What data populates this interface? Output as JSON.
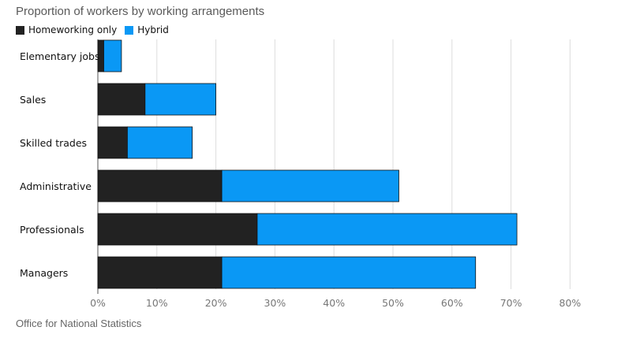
{
  "title": "Proportion of workers by working arrangements",
  "source": "Office for National Statistics",
  "colors": {
    "homeworking": "#222222",
    "hybrid": "#0a98f5",
    "grid": "#dddddd",
    "axis": "#555555"
  },
  "chart_data": {
    "type": "bar",
    "orientation": "horizontal",
    "stacked": true,
    "categories": [
      "Elementary jobs",
      "Sales",
      "Skilled trades",
      "Administrative",
      "Professionals",
      "Managers"
    ],
    "series": [
      {
        "name": "Homeworking only",
        "values": [
          1,
          8,
          5,
          21,
          27,
          21
        ]
      },
      {
        "name": "Hybrid",
        "values": [
          3,
          12,
          11,
          30,
          44,
          43
        ]
      }
    ],
    "xlim": [
      0,
      80
    ],
    "xticks": [
      "0%",
      "10%",
      "20%",
      "30%",
      "40%",
      "50%",
      "60%",
      "70%",
      "80%"
    ],
    "grid": true,
    "legend_position": "top-left"
  }
}
